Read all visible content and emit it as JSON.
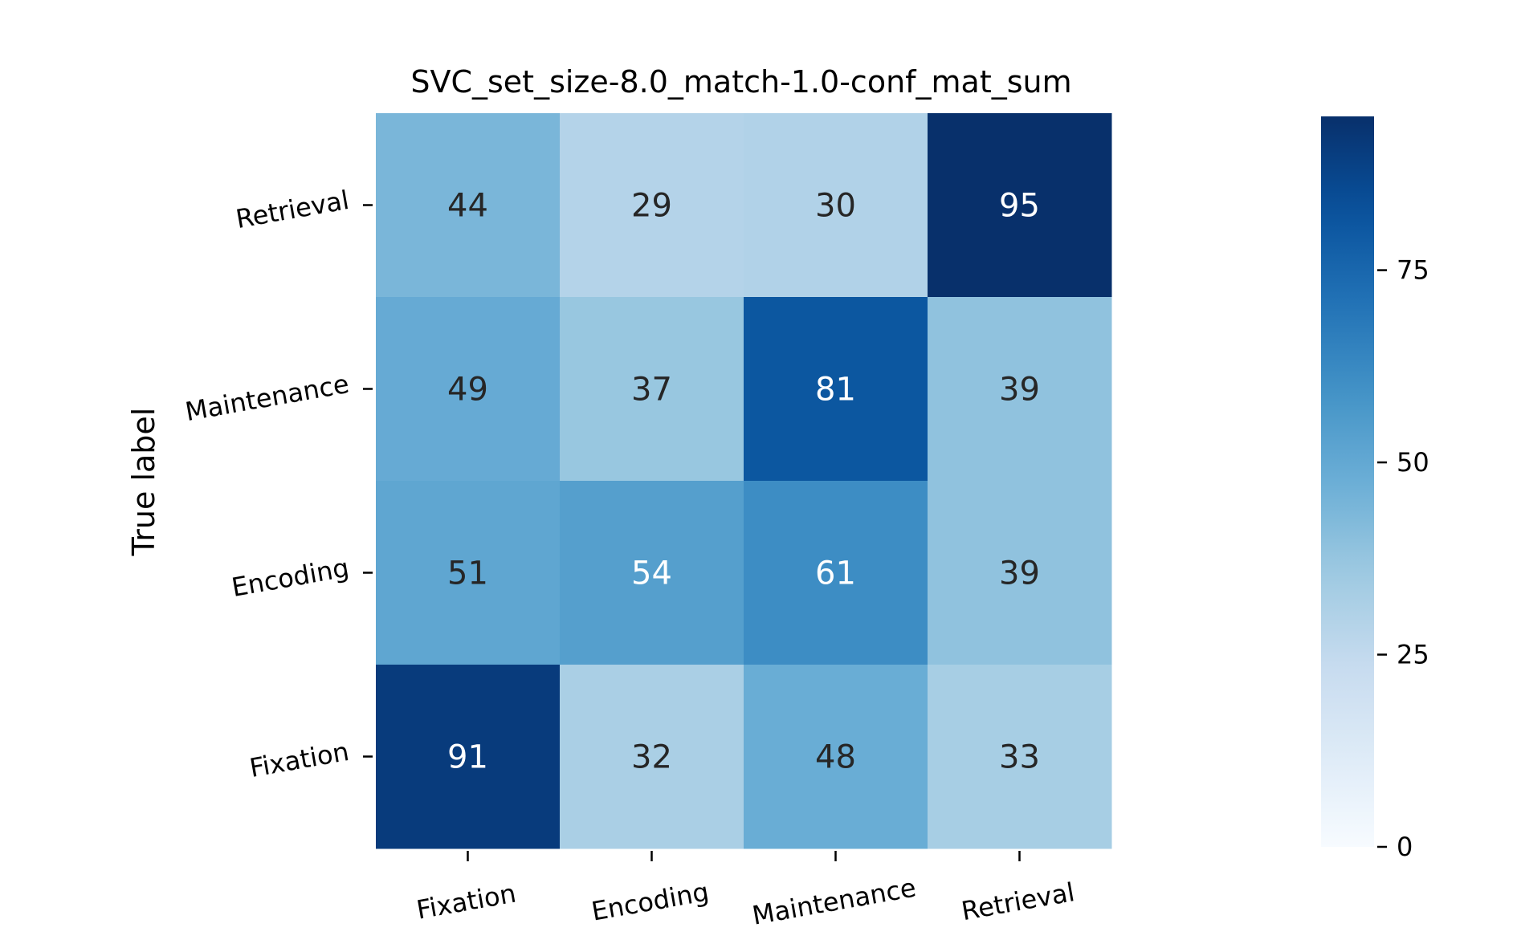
{
  "chart_data": {
    "type": "heatmap",
    "title": "SVC_set_size-8.0_match-1.0-conf_mat_sum",
    "ylabel": "True label",
    "xlabel": "",
    "x_categories": [
      "Fixation",
      "Encoding",
      "Maintenance",
      "Retrieval"
    ],
    "y_categories": [
      "Retrieval",
      "Maintenance",
      "Encoding",
      "Fixation"
    ],
    "matrix": [
      [
        44,
        29,
        30,
        95
      ],
      [
        49,
        37,
        81,
        39
      ],
      [
        51,
        54,
        61,
        39
      ],
      [
        91,
        32,
        48,
        33
      ]
    ],
    "colormap": "Blues",
    "colorbar": {
      "min": 0,
      "max": 95,
      "ticks": [
        0,
        25,
        50,
        75
      ],
      "tick_labels": [
        "0",
        "25",
        "50",
        "75"
      ]
    },
    "colors": {
      "light_text": "#ffffff",
      "dark_text": "#262626",
      "axis": "#000000"
    }
  }
}
